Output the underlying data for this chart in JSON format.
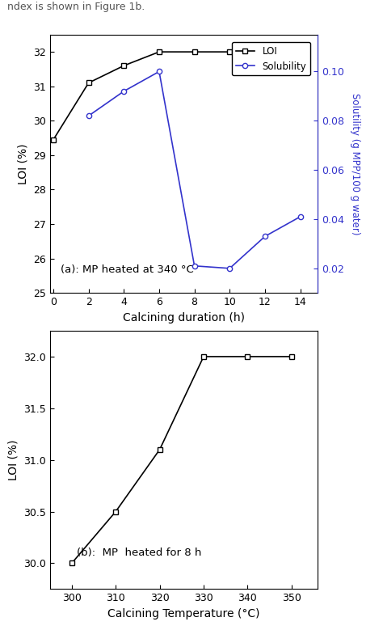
{
  "top": {
    "loi_x": [
      0,
      2,
      4,
      6,
      8,
      10,
      12,
      14
    ],
    "loi_y": [
      29.45,
      31.1,
      31.6,
      32.0,
      32.0,
      32.0,
      32.0,
      32.0
    ],
    "sol_x": [
      2,
      4,
      6,
      8,
      10,
      12,
      14
    ],
    "sol_y": [
      0.082,
      0.092,
      0.1,
      0.021,
      0.02,
      0.033,
      0.041
    ],
    "loi_color": "#000000",
    "sol_color": "#3333cc",
    "xlabel": "Calcining duration (h)",
    "ylabel_left": "LOI (%)",
    "ylabel_right": "Solutility (g MPP/100 g water)",
    "ylim_left": [
      25,
      32.5
    ],
    "ylim_right": [
      0.01,
      0.115
    ],
    "xlim": [
      -0.2,
      15
    ],
    "yticks_left": [
      25,
      26,
      27,
      28,
      29,
      30,
      31,
      32
    ],
    "yticks_right": [
      0.02,
      0.04,
      0.06,
      0.08,
      0.1
    ],
    "xticks": [
      0,
      2,
      4,
      6,
      8,
      10,
      12,
      14
    ],
    "annotation": "(a): MP heated at 340 °C",
    "legend_loi": "LOI",
    "legend_sol": "Solubility"
  },
  "bottom": {
    "loi_x": [
      300,
      310,
      320,
      330,
      340,
      350
    ],
    "loi_y": [
      30.0,
      30.5,
      31.1,
      32.0,
      32.0,
      32.0
    ],
    "loi_color": "#000000",
    "xlabel": "Calcining Temperature (°C)",
    "ylabel": "LOI (%)",
    "ylim": [
      29.75,
      32.25
    ],
    "xlim": [
      295,
      356
    ],
    "yticks": [
      30.0,
      30.5,
      31.0,
      31.5,
      32.0
    ],
    "xticks": [
      300,
      310,
      320,
      330,
      340,
      350
    ],
    "annotation": "(b):  MP  heated for 8 h"
  },
  "background_color": "#ffffff",
  "header_text": "ndex is shown in Figure 1b."
}
